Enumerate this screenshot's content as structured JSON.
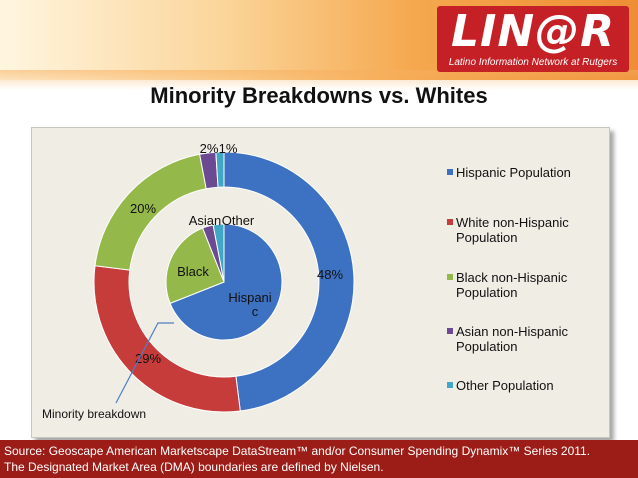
{
  "header": {
    "logo_text": "LIN@R",
    "logo_subtitle": "Latino Information Network at Rutgers",
    "accent_color": "#c42026"
  },
  "chart_data": {
    "type": "donut",
    "title": "Minority Breakdowns vs. Whites",
    "outer_series": {
      "name": "Population",
      "categories": [
        "Hispanic Population",
        "White non-Hispanic Population",
        "Black non-Hispanic Population",
        "Asian non-Hispanic Population",
        "Other Population"
      ],
      "values": [
        48,
        29,
        20,
        2,
        1
      ],
      "labels": [
        "48%",
        "29%",
        "20%",
        "2%",
        "1%"
      ],
      "colors": [
        "#3d72c2",
        "#c63c3a",
        "#94b94a",
        "#6b4a91",
        "#40a8c6"
      ]
    },
    "inner_series": {
      "name": "Minority breakdown",
      "values": [
        69,
        25,
        3,
        3
      ],
      "labels": [
        "Hispanic",
        "Black",
        "Asian",
        "Other"
      ],
      "colors": [
        "#3d72c2",
        "#94b94a",
        "#6b4a91",
        "#40a8c6"
      ]
    },
    "annotation": "Minority breakdown",
    "legend_position": "right"
  },
  "legend": {
    "items": [
      {
        "label": "Hispanic Population",
        "color": "#3d72c2"
      },
      {
        "label": "White non-Hispanic Population",
        "color": "#c63c3a"
      },
      {
        "label": "Black non-Hispanic Population",
        "color": "#94b94a"
      },
      {
        "label": "Asian non-Hispanic Population",
        "color": "#6b4a91"
      },
      {
        "label": "Other Population",
        "color": "#40a8c6"
      }
    ]
  },
  "footer": {
    "line1": "Source: Geoscape American Marketscape DataStream™ and/or Consumer Spending Dynamix™ Series 2011.",
    "line2": "The Designated Market Area (DMA) boundaries are defined by Nielsen."
  }
}
